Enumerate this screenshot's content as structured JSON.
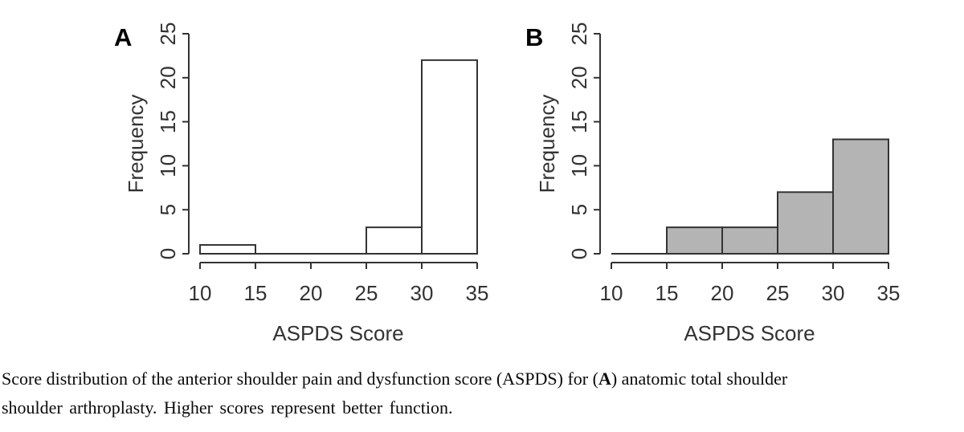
{
  "page": {
    "background": "#ffffff"
  },
  "caption": {
    "line1_before": "Score distribution of the anterior shoulder pain and dysfunction score (ASPDS) for (",
    "line1_bold": "A",
    "line1_after": ") anatomic total shoulder",
    "line2": "shoulder arthroplasty. Higher scores represent better function."
  },
  "chart_data": [
    {
      "type": "bar",
      "subtype": "histogram",
      "panel_label": "A",
      "xlabel": "ASPDS Score",
      "ylabel": "Frequency",
      "bin_edges": [
        10,
        15,
        20,
        25,
        30,
        35
      ],
      "values": [
        1,
        0,
        0,
        3,
        22
      ],
      "xticks": [
        10,
        15,
        20,
        25,
        30,
        35
      ],
      "yticks": [
        0,
        5,
        10,
        15,
        20,
        25
      ],
      "xlim": [
        10,
        35
      ],
      "ylim": [
        0,
        25
      ],
      "bar_fill": "#ffffff",
      "bar_border": "#333333",
      "axis_color": "#333333",
      "grid": false,
      "legend": "none"
    },
    {
      "type": "bar",
      "subtype": "histogram",
      "panel_label": "B",
      "xlabel": "ASPDS Score",
      "ylabel": "Frequency",
      "bin_edges": [
        10,
        15,
        20,
        25,
        30,
        35
      ],
      "values": [
        0,
        3,
        3,
        7,
        13
      ],
      "xticks": [
        10,
        15,
        20,
        25,
        30,
        35
      ],
      "yticks": [
        0,
        5,
        10,
        15,
        20,
        25
      ],
      "xlim": [
        10,
        35
      ],
      "ylim": [
        0,
        25
      ],
      "bar_fill": "#b4b4b4",
      "bar_border": "#333333",
      "axis_color": "#333333",
      "grid": false,
      "legend": "none"
    }
  ]
}
